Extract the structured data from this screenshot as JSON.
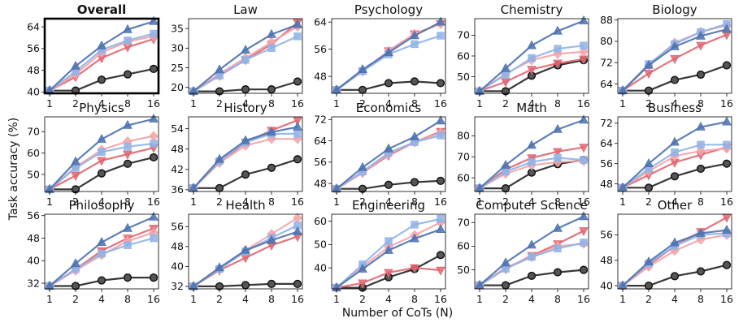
{
  "figure": {
    "ylabel": "Task accuracy (%)",
    "xlabel": "Number of CoTs (N)"
  },
  "series_styles": [
    {
      "color": "#4c72b0",
      "marker": "triangle-up"
    },
    {
      "color": "#8fb3e8",
      "marker": "square"
    },
    {
      "color": "#f4a3a8",
      "marker": "diamond"
    },
    {
      "color": "#e06570",
      "marker": "triangle-down"
    },
    {
      "color": "#222222",
      "marker": "circle"
    }
  ],
  "chart_data": [
    {
      "type": "line",
      "title": "Overall",
      "highlight": true,
      "x": [
        1,
        2,
        4,
        8,
        16
      ],
      "ylim": [
        39.5,
        67
      ],
      "yticks": [
        40,
        48,
        56,
        64
      ],
      "series": [
        {
          "values": [
            40.5,
            49.5,
            57.0,
            63.0,
            66.0
          ]
        },
        {
          "values": [
            40.5,
            47.5,
            55.5,
            59.0,
            61.5
          ]
        },
        {
          "values": [
            40.5,
            46.5,
            54.5,
            58.5,
            60.5
          ]
        },
        {
          "values": [
            40.5,
            45.5,
            52.5,
            56.5,
            59.5
          ]
        },
        {
          "values": [
            40.5,
            40.5,
            44.5,
            46.5,
            48.5
          ]
        }
      ]
    },
    {
      "type": "line",
      "title": "Law",
      "x": [
        1,
        2,
        4,
        8,
        16
      ],
      "ylim": [
        18.5,
        37.5
      ],
      "yticks": [
        20,
        25,
        30,
        35
      ],
      "series": [
        {
          "values": [
            19.0,
            24.5,
            29.5,
            33.5,
            36.0
          ]
        },
        {
          "values": [
            19.0,
            23.0,
            27.0,
            30.0,
            33.0
          ]
        },
        {
          "values": [
            19.0,
            23.5,
            27.5,
            31.5,
            35.5
          ]
        },
        {
          "values": [
            19.0,
            23.0,
            27.0,
            31.0,
            36.5
          ]
        },
        {
          "values": [
            19.0,
            19.0,
            19.5,
            19.5,
            21.5
          ]
        }
      ]
    },
    {
      "type": "line",
      "title": "Psychology",
      "x": [
        1,
        2,
        4,
        8,
        16
      ],
      "ylim": [
        43,
        65
      ],
      "yticks": [
        48,
        56,
        64
      ],
      "series": [
        {
          "values": [
            44.0,
            50.0,
            55.0,
            60.0,
            64.0
          ]
        },
        {
          "values": [
            44.0,
            49.5,
            54.5,
            57.5,
            60.0
          ]
        },
        {
          "values": [
            44.0,
            49.5,
            55.5,
            60.5,
            63.5
          ]
        },
        {
          "values": [
            44.0,
            49.5,
            55.5,
            60.5,
            63.5
          ]
        },
        {
          "values": [
            44.0,
            44.0,
            46.0,
            46.5,
            46.0
          ]
        }
      ]
    },
    {
      "type": "line",
      "title": "Chemistry",
      "x": [
        1,
        2,
        4,
        8,
        16
      ],
      "ylim": [
        42,
        78
      ],
      "yticks": [
        50,
        60,
        70
      ],
      "series": [
        {
          "values": [
            43.0,
            54.0,
            65.0,
            72.0,
            77.0
          ]
        },
        {
          "values": [
            43.0,
            51.0,
            59.0,
            63.5,
            65.0
          ]
        },
        {
          "values": [
            43.0,
            51.5,
            58.0,
            61.0,
            62.0
          ]
        },
        {
          "values": [
            43.0,
            47.5,
            53.5,
            56.5,
            58.5
          ]
        },
        {
          "values": [
            43.0,
            43.0,
            50.5,
            55.5,
            58.0
          ]
        }
      ]
    },
    {
      "type": "line",
      "title": "Biology",
      "x": [
        1,
        2,
        4,
        8,
        16
      ],
      "ylim": [
        60.5,
        88.5
      ],
      "yticks": [
        64,
        72,
        80,
        88
      ],
      "series": [
        {
          "values": [
            61.5,
            71.0,
            78.0,
            82.0,
            84.5
          ]
        },
        {
          "values": [
            61.5,
            71.5,
            79.0,
            83.5,
            86.5
          ]
        },
        {
          "values": [
            61.5,
            71.0,
            79.5,
            83.5,
            86.0
          ]
        },
        {
          "values": [
            61.5,
            68.0,
            73.5,
            78.5,
            82.5
          ]
        },
        {
          "values": [
            61.5,
            61.5,
            65.5,
            67.5,
            71.0
          ]
        }
      ]
    },
    {
      "type": "line",
      "title": "Physics",
      "x": [
        1,
        2,
        4,
        8,
        16
      ],
      "ylim": [
        42,
        77
      ],
      "yticks": [
        50,
        60,
        70
      ],
      "series": [
        {
          "values": [
            43.0,
            56.0,
            66.5,
            73.0,
            76.0
          ]
        },
        {
          "values": [
            43.0,
            53.0,
            60.5,
            63.0,
            64.5
          ]
        },
        {
          "values": [
            43.0,
            53.5,
            61.5,
            65.5,
            68.0
          ]
        },
        {
          "values": [
            43.0,
            49.5,
            56.5,
            59.5,
            62.5
          ]
        },
        {
          "values": [
            43.0,
            43.0,
            50.5,
            55.0,
            58.0
          ]
        }
      ]
    },
    {
      "type": "line",
      "title": "History",
      "x": [
        1,
        2,
        4,
        8,
        16
      ],
      "ylim": [
        35.5,
        57.5
      ],
      "yticks": [
        36,
        42,
        48,
        54
      ],
      "series": [
        {
          "values": [
            36.5,
            45.0,
            50.5,
            53.0,
            54.5
          ]
        },
        {
          "values": [
            36.5,
            44.5,
            50.0,
            52.5,
            52.5
          ]
        },
        {
          "values": [
            36.5,
            44.0,
            49.0,
            51.0,
            51.0
          ]
        },
        {
          "values": [
            36.5,
            44.0,
            50.0,
            53.5,
            56.5
          ]
        },
        {
          "values": [
            36.5,
            36.5,
            40.5,
            42.5,
            45.0
          ]
        }
      ]
    },
    {
      "type": "line",
      "title": "Economics",
      "x": [
        1,
        2,
        4,
        8,
        16
      ],
      "ylim": [
        45,
        73
      ],
      "yticks": [
        48,
        56,
        64,
        72
      ],
      "series": [
        {
          "values": [
            46.0,
            54.0,
            61.0,
            65.5,
            71.5
          ]
        },
        {
          "values": [
            46.0,
            52.5,
            59.5,
            63.5,
            66.0
          ]
        },
        {
          "values": [
            46.0,
            52.0,
            59.0,
            63.5,
            67.0
          ]
        },
        {
          "values": [
            46.0,
            52.0,
            58.5,
            63.5,
            67.5
          ]
        },
        {
          "values": [
            46.0,
            46.0,
            47.5,
            48.5,
            49.0
          ]
        }
      ]
    },
    {
      "type": "line",
      "title": "Math",
      "x": [
        1,
        2,
        4,
        8,
        16
      ],
      "ylim": [
        53.5,
        89
      ],
      "yticks": [
        60,
        70,
        80
      ],
      "series": [
        {
          "values": [
            55.0,
            66.0,
            75.5,
            83.0,
            87.5
          ]
        },
        {
          "values": [
            55.0,
            63.0,
            67.5,
            69.5,
            68.5
          ]
        },
        {
          "values": [
            55.0,
            62.0,
            66.0,
            67.5,
            68.0
          ]
        },
        {
          "values": [
            55.0,
            64.0,
            69.5,
            72.5,
            74.5
          ]
        },
        {
          "values": [
            55.0,
            55.0,
            62.5,
            66.5,
            68.5
          ]
        }
      ]
    },
    {
      "type": "line",
      "title": "Business",
      "x": [
        1,
        2,
        4,
        8,
        16
      ],
      "ylim": [
        45,
        74.5
      ],
      "yticks": [
        48,
        56,
        64,
        72
      ],
      "series": [
        {
          "values": [
            46.5,
            56.0,
            64.5,
            70.5,
            72.5
          ]
        },
        {
          "values": [
            46.5,
            54.0,
            60.5,
            63.5,
            63.5
          ]
        },
        {
          "values": [
            46.5,
            53.0,
            59.0,
            61.0,
            62.0
          ]
        },
        {
          "values": [
            46.5,
            51.5,
            56.5,
            59.5,
            62.5
          ]
        },
        {
          "values": [
            46.5,
            46.5,
            51.0,
            54.0,
            56.0
          ]
        }
      ]
    },
    {
      "type": "line",
      "title": "Philosophy",
      "x": [
        1,
        2,
        4,
        8,
        16
      ],
      "ylim": [
        30,
        56.5
      ],
      "yticks": [
        32,
        40,
        48,
        56
      ],
      "series": [
        {
          "values": [
            31.0,
            39.0,
            46.5,
            51.5,
            55.5
          ]
        },
        {
          "values": [
            31.0,
            37.0,
            42.5,
            45.5,
            48.0
          ]
        },
        {
          "values": [
            31.0,
            36.5,
            42.0,
            47.0,
            50.0
          ]
        },
        {
          "values": [
            31.0,
            37.0,
            43.5,
            48.0,
            51.5
          ]
        },
        {
          "values": [
            31.0,
            31.0,
            33.0,
            34.0,
            34.0
          ]
        }
      ]
    },
    {
      "type": "line",
      "title": "Health",
      "x": [
        1,
        2,
        4,
        8,
        16
      ],
      "ylim": [
        31,
        61
      ],
      "yticks": [
        32,
        40,
        48,
        56
      ],
      "series": [
        {
          "values": [
            32.0,
            39.5,
            46.5,
            50.5,
            54.0
          ]
        },
        {
          "values": [
            32.0,
            39.0,
            46.0,
            51.5,
            56.5
          ]
        },
        {
          "values": [
            32.0,
            39.0,
            46.5,
            53.0,
            59.5
          ]
        },
        {
          "values": [
            32.0,
            38.5,
            43.5,
            48.5,
            52.0
          ]
        },
        {
          "values": [
            32.0,
            32.0,
            32.5,
            33.0,
            33.0
          ]
        }
      ]
    },
    {
      "type": "line",
      "title": "Engineering",
      "x": [
        1,
        2,
        4,
        8,
        16
      ],
      "ylim": [
        31,
        63
      ],
      "yticks": [
        30,
        40,
        50,
        60
      ],
      "series": [
        {
          "values": [
            31.5,
            39.5,
            47.5,
            52.5,
            56.5
          ]
        },
        {
          "values": [
            31.5,
            41.5,
            51.5,
            58.5,
            61.0
          ]
        },
        {
          "values": [
            31.5,
            40.5,
            49.0,
            54.0,
            59.5
          ]
        },
        {
          "values": [
            31.5,
            33.5,
            38.0,
            40.0,
            39.0
          ]
        },
        {
          "values": [
            31.5,
            31.5,
            36.0,
            39.5,
            45.5
          ]
        }
      ]
    },
    {
      "type": "line",
      "title": "Computer Science",
      "x": [
        1,
        2,
        4,
        8,
        16
      ],
      "ylim": [
        42,
        73.5
      ],
      "yticks": [
        40,
        50,
        60,
        70
      ],
      "series": [
        {
          "values": [
            43.5,
            53.0,
            60.5,
            67.5,
            72.5
          ]
        },
        {
          "values": [
            43.5,
            50.5,
            55.5,
            59.0,
            61.5
          ]
        },
        {
          "values": [
            43.5,
            51.0,
            55.5,
            60.0,
            61.0
          ]
        },
        {
          "values": [
            43.5,
            50.5,
            56.0,
            61.0,
            66.5
          ]
        },
        {
          "values": [
            43.5,
            43.5,
            47.5,
            49.0,
            50.0
          ]
        }
      ]
    },
    {
      "type": "line",
      "title": "Other",
      "x": [
        1,
        2,
        4,
        8,
        16
      ],
      "ylim": [
        39,
        62.5
      ],
      "yticks": [
        40,
        48,
        56
      ],
      "series": [
        {
          "values": [
            40.0,
            47.5,
            53.5,
            56.5,
            57.5
          ]
        },
        {
          "values": [
            40.0,
            47.0,
            52.5,
            56.0,
            56.5
          ]
        },
        {
          "values": [
            40.0,
            46.0,
            51.0,
            54.5,
            56.0
          ]
        },
        {
          "values": [
            40.0,
            46.5,
            52.5,
            57.0,
            61.5
          ]
        },
        {
          "values": [
            40.0,
            40.0,
            43.0,
            44.5,
            46.5
          ]
        }
      ]
    }
  ]
}
